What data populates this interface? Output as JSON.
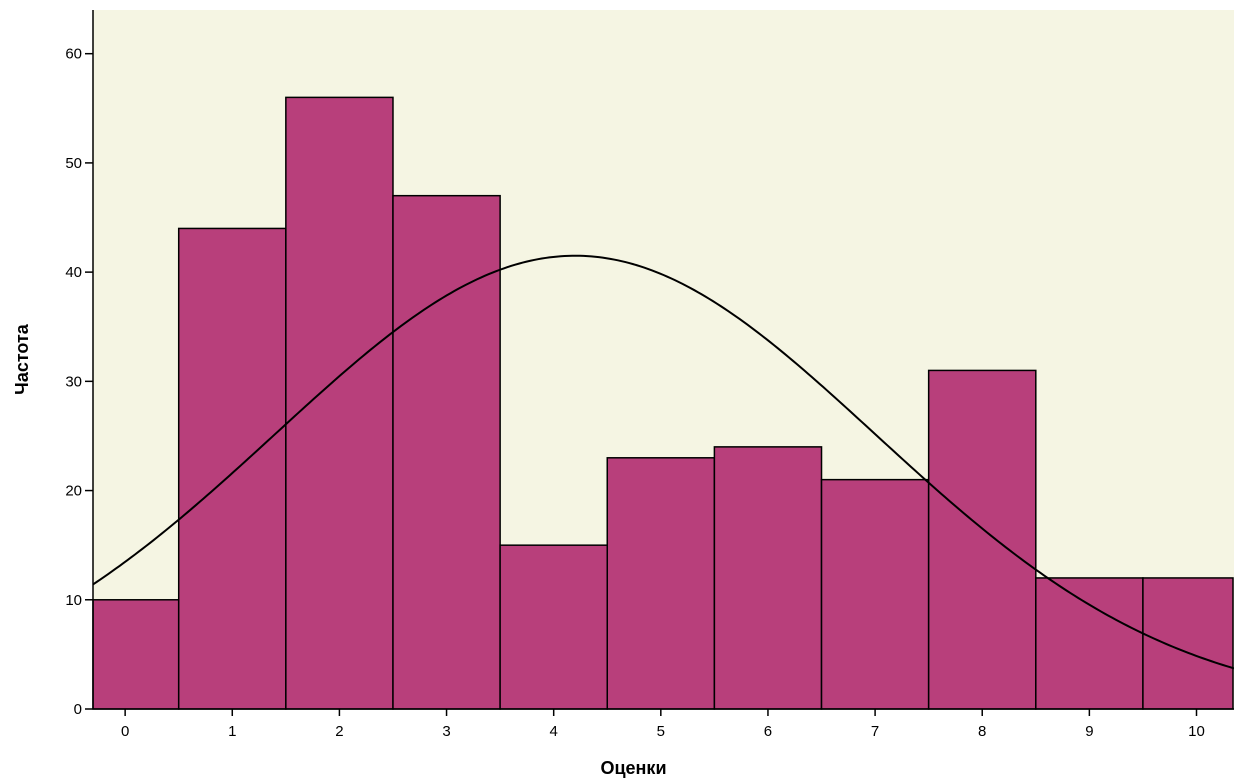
{
  "chart_data": {
    "type": "bar",
    "subtype": "histogram-with-normal-curve",
    "categories": [
      "0",
      "1",
      "2",
      "3",
      "4",
      "5",
      "6",
      "7",
      "8",
      "9",
      "10"
    ],
    "x": [
      0,
      1,
      2,
      3,
      4,
      5,
      6,
      7,
      8,
      9,
      10
    ],
    "values": [
      10,
      44,
      56,
      47,
      15,
      23,
      24,
      21,
      31,
      12,
      12
    ],
    "xlabel": "Оценки",
    "ylabel": "Частота",
    "title": "",
    "ylim": [
      0,
      64
    ],
    "xlim": [
      -0.3,
      10.35
    ],
    "yticks": [
      0,
      10,
      20,
      30,
      40,
      50,
      60
    ],
    "grid": false,
    "legend": "none",
    "normal_curve": {
      "mean": 4.2,
      "std": 2.8,
      "peak": 41.5
    },
    "colors": {
      "bar_fill": "#B83F7B",
      "bar_stroke": "#000000",
      "plot_background": "#F5F5E3",
      "curve": "#000000",
      "axis": "#000000"
    }
  }
}
